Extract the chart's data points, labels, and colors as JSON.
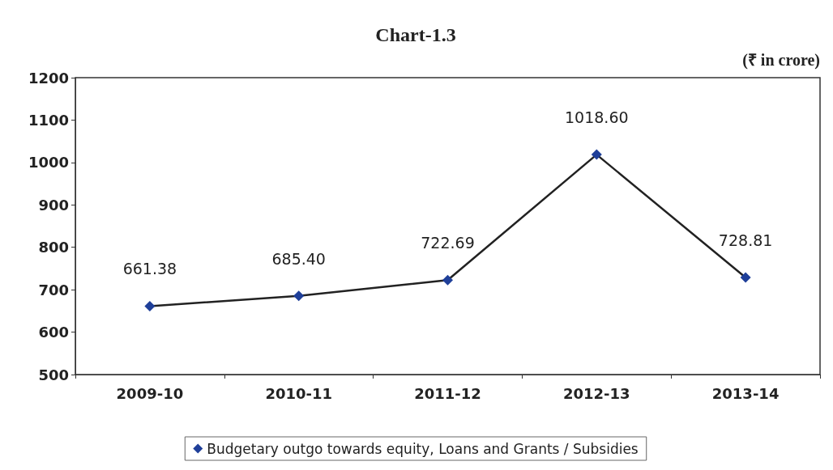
{
  "chart_data": {
    "type": "line",
    "title": "Chart-1.3",
    "annotations": [
      "(₹ in crore)"
    ],
    "categories": [
      "2009-10",
      "2010-11",
      "2011-12",
      "2012-13",
      "2013-14"
    ],
    "series": [
      {
        "name": "Budgetary outgo towards equity, Loans and Grants / Subsidies",
        "color": "#1f3f99",
        "values": [
          661.38,
          685.4,
          722.69,
          1018.6,
          728.81
        ],
        "value_labels": [
          "661.38",
          "685.40",
          "722.69",
          "1018.60",
          "728.81"
        ]
      }
    ],
    "ylim": [
      500,
      1200
    ],
    "yticks": [
      500,
      600,
      700,
      800,
      900,
      1000,
      1100,
      1200
    ],
    "grid": false,
    "legend": "bottom",
    "marker": "diamond",
    "line_style": "solid"
  }
}
